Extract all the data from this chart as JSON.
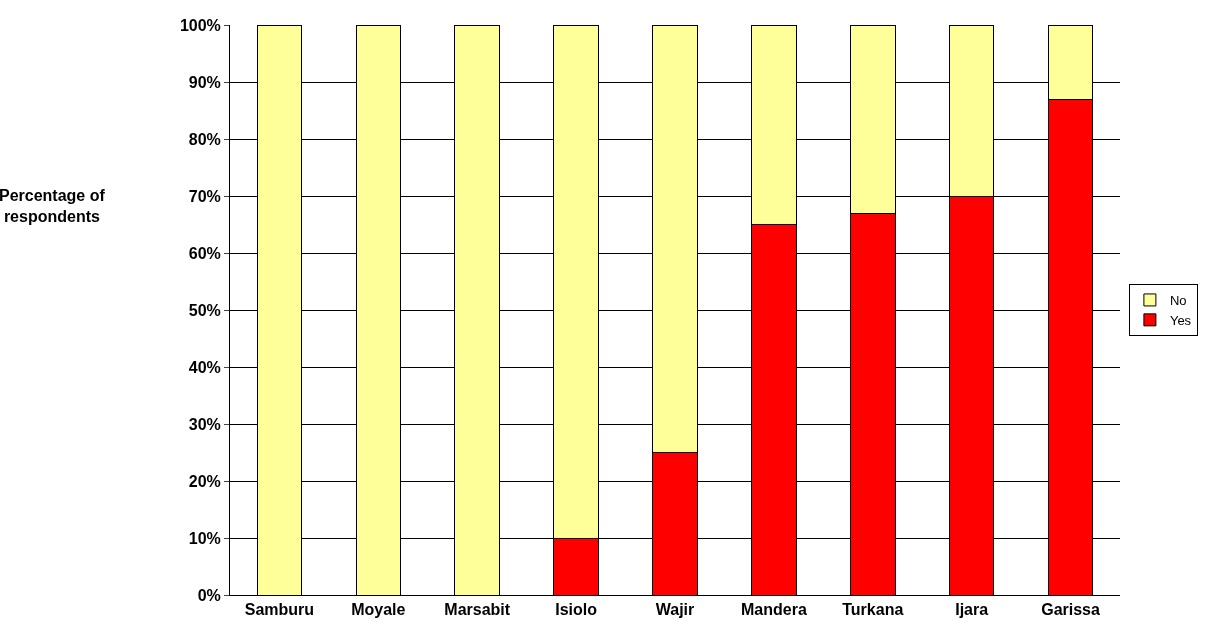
{
  "chart_data": {
    "type": "bar",
    "stacked": true,
    "ylabel": "Percentage of respondents",
    "categories": [
      "Samburu",
      "Moyale",
      "Marsabit",
      "Isiolo",
      "Wajir",
      "Mandera",
      "Turkana",
      "Ijara",
      "Garissa"
    ],
    "series": [
      {
        "name": "Yes",
        "color": "#ff0000",
        "values": [
          0,
          0,
          0,
          10,
          25,
          65,
          67,
          70,
          87
        ]
      },
      {
        "name": "No",
        "color": "#ffff99",
        "values": [
          100,
          100,
          100,
          90,
          75,
          35,
          33,
          30,
          13
        ]
      }
    ],
    "ylim": [
      0,
      100
    ],
    "yticks": [
      {
        "value": 0,
        "label": "0%"
      },
      {
        "value": 10,
        "label": "10%"
      },
      {
        "value": 20,
        "label": "20%"
      },
      {
        "value": 30,
        "label": "30%"
      },
      {
        "value": 40,
        "label": "40%"
      },
      {
        "value": 50,
        "label": "50%"
      },
      {
        "value": 60,
        "label": "60%"
      },
      {
        "value": 70,
        "label": "70%"
      },
      {
        "value": 80,
        "label": "80%"
      },
      {
        "value": 90,
        "label": "90%"
      },
      {
        "value": 100,
        "label": "100%"
      }
    ],
    "grid": "y",
    "legend": "right"
  }
}
